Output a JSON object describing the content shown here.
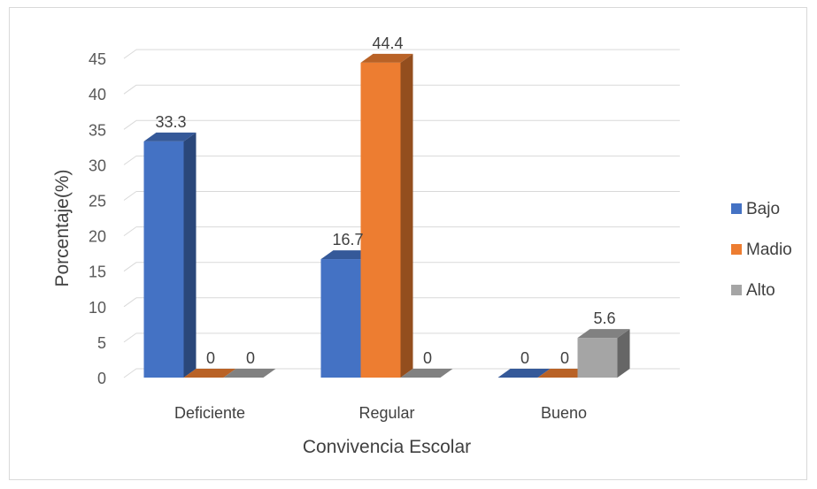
{
  "chart_data": {
    "type": "bar",
    "style": "3d-clustered-column",
    "title": "",
    "xlabel": "Convivencia Escolar",
    "ylabel": "Porcentaje(%)",
    "ylim": [
      0,
      45
    ],
    "yticks": [
      0,
      5,
      10,
      15,
      20,
      25,
      30,
      35,
      40,
      45
    ],
    "grid": true,
    "legend_position": "right",
    "categories": [
      "Deficiente",
      "Regular",
      "Bueno"
    ],
    "series": [
      {
        "name": "Bajo",
        "values": [
          33.3,
          16.7,
          0
        ],
        "labels": [
          "33.3",
          "16.7",
          "0"
        ],
        "color": "#4472c4"
      },
      {
        "name": "Madio",
        "values": [
          0,
          44.4,
          0
        ],
        "labels": [
          "0",
          "44.4",
          "0"
        ],
        "color": "#ed7d31"
      },
      {
        "name": "Alto",
        "values": [
          0,
          0,
          5.6
        ],
        "labels": [
          "0",
          "0",
          "5.6"
        ],
        "color": "#a5a5a5"
      }
    ]
  }
}
